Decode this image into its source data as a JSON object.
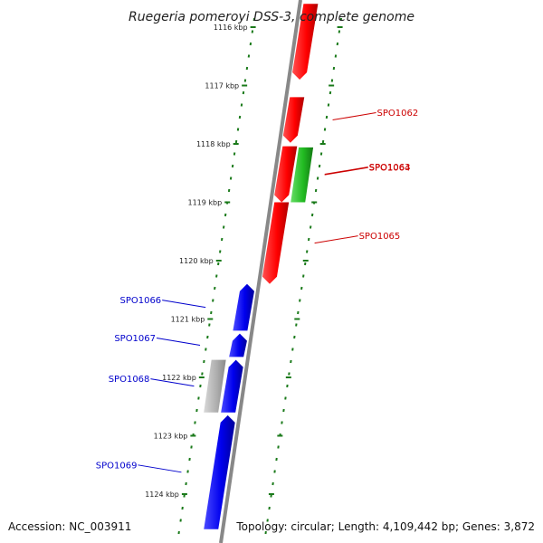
{
  "title": "Ruegeria pomeroyi DSS-3, complete genome",
  "accession": "Accession: NC_003911",
  "topology": "Topology: circular; Length: 4,109,442 bp; Genes: 3,872",
  "scale_ticks": [
    {
      "kbp": 1116,
      "label": "1116 kbp"
    },
    {
      "kbp": 1117,
      "label": "1117 kbp"
    },
    {
      "kbp": 1118,
      "label": "1118 kbp"
    },
    {
      "kbp": 1119,
      "label": "1119 kbp"
    },
    {
      "kbp": 1120,
      "label": "1120 kbp"
    },
    {
      "kbp": 1121,
      "label": "1121 kbp"
    },
    {
      "kbp": 1122,
      "label": "1122 kbp"
    },
    {
      "kbp": 1123,
      "label": "1123 kbp"
    },
    {
      "kbp": 1124,
      "label": "1124 kbp"
    }
  ],
  "genes": [
    {
      "label": "",
      "strand": "plus",
      "color": "#ff0000",
      "start_kbp": 1115.6,
      "end_kbp": 1116.9
    },
    {
      "label": "SPO1062",
      "strand": "plus",
      "color": "#ff0000",
      "start_kbp": 1117.2,
      "end_kbp": 1117.98
    },
    {
      "label": "SPO1063",
      "strand": "plus",
      "color": "#ff0000",
      "start_kbp": 1118.04,
      "end_kbp": 1119.0
    },
    {
      "label": "SPO1064",
      "strand": "plus-outer",
      "color": "#22bb22",
      "start_kbp": 1118.06,
      "end_kbp": 1119.0
    },
    {
      "label": "SPO1065",
      "strand": "plus",
      "color": "#ff0000",
      "start_kbp": 1119.0,
      "end_kbp": 1120.4
    },
    {
      "label": "SPO1066",
      "strand": "minus",
      "color": "#0000ee",
      "start_kbp": 1120.4,
      "end_kbp": 1121.2
    },
    {
      "label": "SPO1067",
      "strand": "minus",
      "color": "#0000ee",
      "start_kbp": 1121.25,
      "end_kbp": 1121.65
    },
    {
      "label": "SPO1068",
      "strand": "minus",
      "color": "#0000ee",
      "start_kbp": 1121.7,
      "end_kbp": 1122.6
    },
    {
      "label": "",
      "strand": "minus-outer",
      "color": "#b0b0b0",
      "start_kbp": 1121.7,
      "end_kbp": 1122.6
    },
    {
      "label": "SPO1069",
      "strand": "minus",
      "color": "#0000ee",
      "start_kbp": 1122.65,
      "end_kbp": 1124.6
    }
  ],
  "colors": {
    "backbone": "#888888",
    "dots": "#1a7a1a",
    "plus_label": "#cc0000",
    "minus_label": "#0000cc"
  }
}
